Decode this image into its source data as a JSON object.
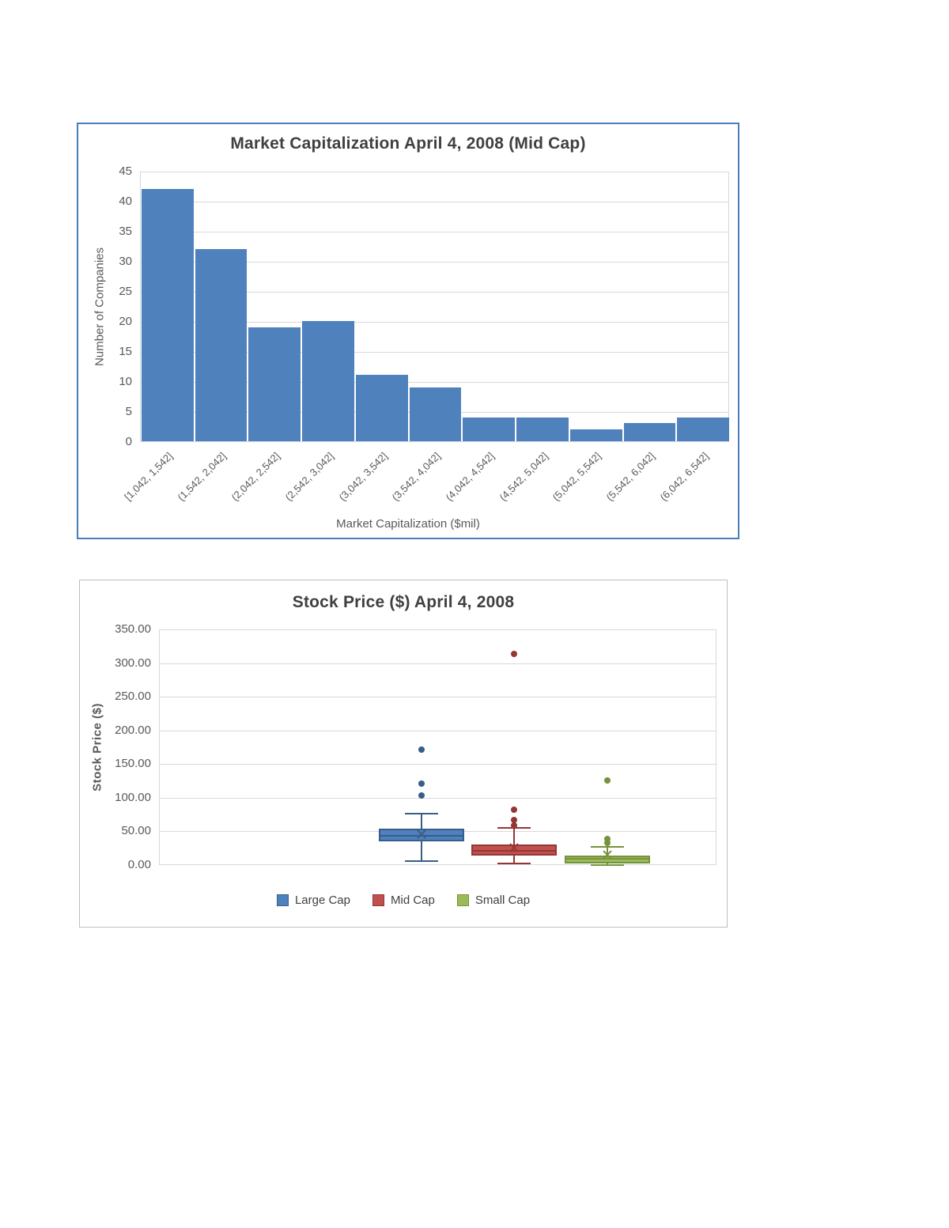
{
  "chart_data": [
    {
      "type": "bar",
      "chart_kind": "histogram",
      "title": "Market Capitalization April 4, 2008 (Mid Cap)",
      "xlabel": "Market Capitalization ($mil)",
      "ylabel": "Number of Companies",
      "categories": [
        "[1,042, 1,542]",
        "(1,542, 2,042]",
        "(2,042, 2,542]",
        "(2,542, 3,042]",
        "(3,042, 3,542]",
        "(3,542, 4,042]",
        "(4,042, 4,542]",
        "(4,542, 5,042]",
        "(5,042, 5,542]",
        "(5,542, 6,042]",
        "(6,042, 6,542]"
      ],
      "values": [
        42,
        32,
        19,
        20,
        11,
        9,
        4,
        4,
        2,
        3,
        4
      ],
      "ylim": [
        0,
        45
      ],
      "yticks": [
        0,
        5,
        10,
        15,
        20,
        25,
        30,
        35,
        40,
        45
      ],
      "grid": true,
      "legend_position": "none",
      "colors": {
        "bar": "#4F81BD",
        "chart_border": "#4A7EBB",
        "gridline": "#D9D9D9",
        "axis_text": "#595959",
        "title_text": "#404040"
      }
    },
    {
      "type": "boxplot",
      "title": "Stock Price ($) April 4, 2008",
      "ylabel": "Stock Price ($)",
      "ylim": [
        0,
        350
      ],
      "ytick_labels": [
        "0.00",
        "50.00",
        "100.00",
        "150.00",
        "200.00",
        "250.00",
        "300.00",
        "350.00"
      ],
      "grid": true,
      "legend_position": "bottom",
      "series": [
        {
          "name": "Large Cap",
          "fill": "#4F81BD",
          "line": "#385D8A",
          "whisker_low": 7,
          "q1": 36,
          "median": 45,
          "mean": 47,
          "q3": 55,
          "whisker_high": 78,
          "outliers": [
            104,
            122,
            173
          ]
        },
        {
          "name": "Mid Cap",
          "fill": "#C0504D",
          "line": "#943634",
          "whisker_low": 3,
          "q1": 15,
          "median": 22,
          "mean": 27,
          "q3": 32,
          "whisker_high": 56,
          "outliers": [
            60,
            68,
            83,
            315
          ]
        },
        {
          "name": "Small Cap",
          "fill": "#9BBB59",
          "line": "#76923C",
          "whisker_low": 1,
          "q1": 3,
          "median": 10,
          "mean": 16,
          "q3": 15,
          "whisker_high": 28,
          "outliers": [
            34,
            40,
            127
          ]
        }
      ]
    }
  ]
}
